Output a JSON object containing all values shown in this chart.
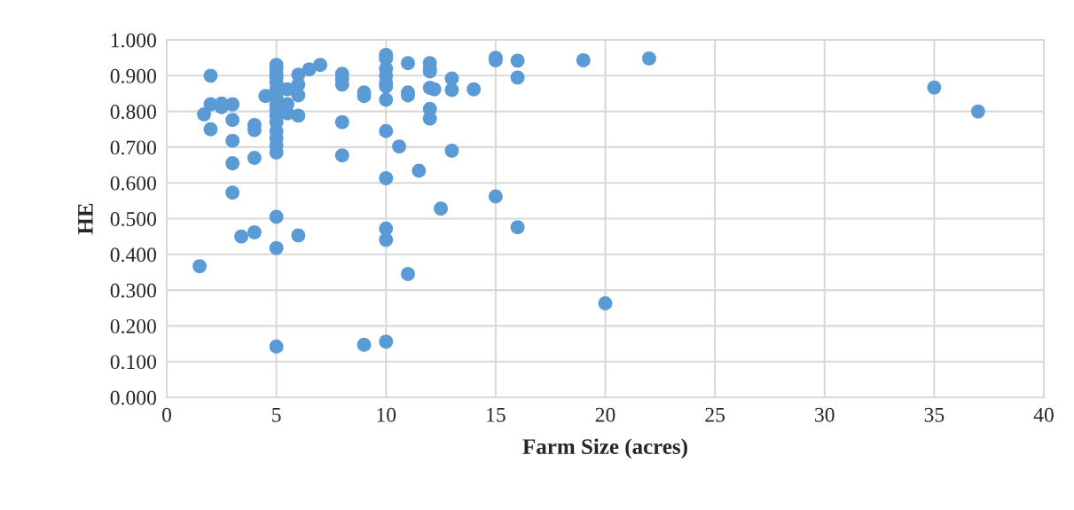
{
  "chart_data": {
    "type": "scatter",
    "xlabel": "Farm Size (acres)",
    "ylabel": "HE",
    "x": [
      1.5,
      1.7,
      2,
      2,
      2,
      2.5,
      2.5,
      3,
      3,
      3,
      3,
      3,
      3.4,
      4,
      4,
      4,
      4,
      4.5,
      5,
      5,
      5,
      5,
      5,
      5,
      5,
      5,
      5,
      5,
      5,
      5,
      5,
      5,
      5,
      5,
      5,
      5,
      5.5,
      5.5,
      5.5,
      6,
      6,
      6,
      6,
      6,
      6.5,
      7,
      8,
      8,
      8,
      8,
      8,
      9,
      9,
      9,
      10,
      10,
      10,
      10,
      10,
      10,
      10,
      10,
      10,
      10,
      10,
      10,
      10.6,
      11,
      11,
      11,
      11,
      11.5,
      12,
      12,
      12,
      12,
      12,
      12,
      12.2,
      12.5,
      13,
      13,
      13,
      14,
      15,
      15,
      15,
      16,
      16,
      16,
      19,
      20,
      22,
      35,
      37
    ],
    "series": [
      {
        "color": "#5b9bd5",
        "values": [
          0.367,
          0.792,
          0.9,
          0.82,
          0.75,
          0.822,
          0.812,
          0.82,
          0.776,
          0.718,
          0.655,
          0.573,
          0.45,
          0.762,
          0.748,
          0.67,
          0.462,
          0.843,
          0.93,
          0.92,
          0.905,
          0.895,
          0.88,
          0.862,
          0.84,
          0.82,
          0.805,
          0.788,
          0.77,
          0.745,
          0.725,
          0.705,
          0.685,
          0.505,
          0.418,
          0.142,
          0.862,
          0.82,
          0.795,
          0.903,
          0.875,
          0.845,
          0.788,
          0.453,
          0.918,
          0.93,
          0.905,
          0.89,
          0.875,
          0.77,
          0.677,
          0.853,
          0.843,
          0.147,
          0.958,
          0.948,
          0.92,
          0.9,
          0.88,
          0.87,
          0.833,
          0.745,
          0.613,
          0.472,
          0.441,
          0.156,
          0.702,
          0.935,
          0.853,
          0.845,
          0.345,
          0.634,
          0.935,
          0.92,
          0.912,
          0.866,
          0.807,
          0.78,
          0.862,
          0.528,
          0.892,
          0.86,
          0.69,
          0.862,
          0.95,
          0.943,
          0.562,
          0.942,
          0.895,
          0.476,
          0.943,
          0.263,
          0.948,
          0.867,
          0.8
        ]
      }
    ],
    "xlim": [
      0,
      40
    ],
    "xticks": [
      0,
      5,
      10,
      15,
      20,
      25,
      30,
      35,
      40
    ],
    "ylim": [
      0,
      1
    ],
    "yticks": [
      {
        "value": 0,
        "label": "0.000"
      },
      {
        "value": 0.1,
        "label": "0.100"
      },
      {
        "value": 0.2,
        "label": "0.200"
      },
      {
        "value": 0.3,
        "label": "0.300"
      },
      {
        "value": 0.4,
        "label": "0.400"
      },
      {
        "value": 0.5,
        "label": "0.500"
      },
      {
        "value": 0.6,
        "label": "0.600"
      },
      {
        "value": 0.7,
        "label": "0.700"
      },
      {
        "value": 0.8,
        "label": "0.800"
      },
      {
        "value": 0.9,
        "label": "0.900"
      },
      {
        "value": 1,
        "label": "1.000"
      }
    ],
    "grid": true,
    "marker": "circle"
  }
}
